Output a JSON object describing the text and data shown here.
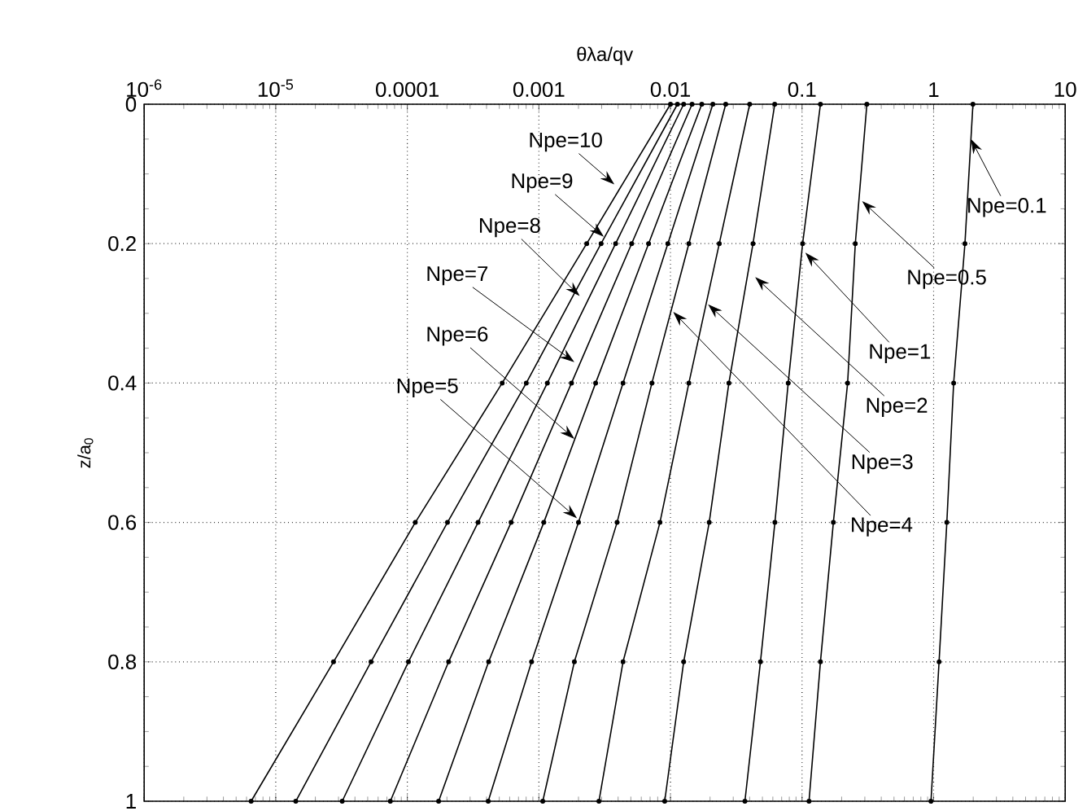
{
  "chart_data": {
    "type": "line",
    "xlabel": "θλa/qv",
    "ylabel": "z/a$_{0}$",
    "log": "x",
    "xlim": [
      1e-06,
      10
    ],
    "ylim": [
      1,
      0
    ],
    "xticks": [
      {
        "value": 1e-06,
        "label": "10$^{-6}$"
      },
      {
        "value": 1e-05,
        "label": "10$^{-5}$"
      },
      0.0001,
      0.001,
      0.01,
      0.1,
      1,
      10
    ],
    "yticks": [
      0,
      0.2,
      0.4,
      0.6,
      0.8,
      1
    ],
    "grid": true,
    "marker": "circle",
    "line_style": "solid",
    "annotations": [
      {
        "text": "Npe=10",
        "x": 0.00375,
        "y": 0.115
      },
      {
        "text": "Npe=9",
        "x": 0.00311,
        "y": 0.19
      },
      {
        "text": "Npe=8",
        "x": 0.00204,
        "y": 0.275
      },
      {
        "text": "Npe=7",
        "x": 0.00186,
        "y": 0.37
      },
      {
        "text": "Npe=6",
        "x": 0.00186,
        "y": 0.48
      },
      {
        "text": "Npe=5",
        "x": 0.00195,
        "y": 0.594
      },
      {
        "text": "Npe=4",
        "x": 0.0105,
        "y": 0.298
      },
      {
        "text": "Npe=3",
        "x": 0.0193,
        "y": 0.287
      },
      {
        "text": "Npe=2",
        "x": 0.044,
        "y": 0.248
      },
      {
        "text": "Npe=1",
        "x": 0.106,
        "y": 0.213
      },
      {
        "text": "Npe=0.5",
        "x": 0.286,
        "y": 0.139
      },
      {
        "text": "Npe=0.1",
        "x": 1.92,
        "y": 0.05
      }
    ],
    "series": [
      {
        "color": "#000000",
        "x": [
          0.01,
          0.00231,
          0.000526,
          0.000115,
          2.75e-05,
          6.5e-06
        ],
        "values": [
          0,
          0.2,
          0.4,
          0.6,
          0.8,
          1
        ]
      },
      {
        "color": "#000000",
        "x": [
          0.0113,
          0.00297,
          0.000802,
          0.000202,
          5.3e-05,
          1.42e-05
        ],
        "values": [
          0,
          0.2,
          0.4,
          0.6,
          0.8,
          1
        ]
      },
      {
        "color": "#000000",
        "x": [
          0.0126,
          0.00383,
          0.00116,
          0.000345,
          0.000102,
          3.2e-05
        ],
        "values": [
          0,
          0.2,
          0.4,
          0.6,
          0.8,
          1
        ]
      },
      {
        "color": "#000000",
        "x": [
          0.0146,
          0.00507,
          0.00177,
          0.000615,
          0.000206,
          7.43e-05
        ],
        "values": [
          0,
          0.2,
          0.4,
          0.6,
          0.8,
          1
        ]
      },
      {
        "color": "#000000",
        "x": [
          0.0173,
          0.00682,
          0.0027,
          0.00109,
          0.000415,
          0.000173
        ],
        "values": [
          0,
          0.2,
          0.4,
          0.6,
          0.8,
          1
        ]
      },
      {
        "color": "#000000",
        "x": [
          0.021,
          0.00955,
          0.00436,
          0.002,
          0.00088,
          0.000412
        ],
        "values": [
          0,
          0.2,
          0.4,
          0.6,
          0.8,
          1
        ]
      },
      {
        "color": "#000000",
        "x": [
          0.0263,
          0.0138,
          0.00723,
          0.00393,
          0.00186,
          0.00107
        ],
        "values": [
          0,
          0.2,
          0.4,
          0.6,
          0.8,
          1
        ]
      },
      {
        "color": "#000000",
        "x": [
          0.04,
          0.0235,
          0.0138,
          0.00832,
          0.00436,
          0.00286
        ],
        "values": [
          0,
          0.2,
          0.4,
          0.6,
          0.8,
          1
        ]
      },
      {
        "color": "#000000",
        "x": [
          0.062,
          0.0424,
          0.0278,
          0.0197,
          0.0126,
          0.00904
        ],
        "values": [
          0,
          0.2,
          0.4,
          0.6,
          0.8,
          1
        ]
      },
      {
        "color": "#000000",
        "x": [
          0.138,
          0.101,
          0.0785,
          0.0622,
          0.0483,
          0.0368
        ],
        "values": [
          0,
          0.2,
          0.4,
          0.6,
          0.8,
          1
        ]
      },
      {
        "color": "#000000",
        "x": [
          0.311,
          0.254,
          0.222,
          0.173,
          0.138,
          0.113
        ],
        "values": [
          0,
          0.2,
          0.4,
          0.6,
          0.8,
          1
        ]
      },
      {
        "color": "#000000",
        "x": [
          1.99,
          1.73,
          1.42,
          1.26,
          1.1,
          0.955
        ],
        "values": [
          0,
          0.2,
          0.4,
          0.6,
          0.8,
          1
        ]
      }
    ]
  }
}
